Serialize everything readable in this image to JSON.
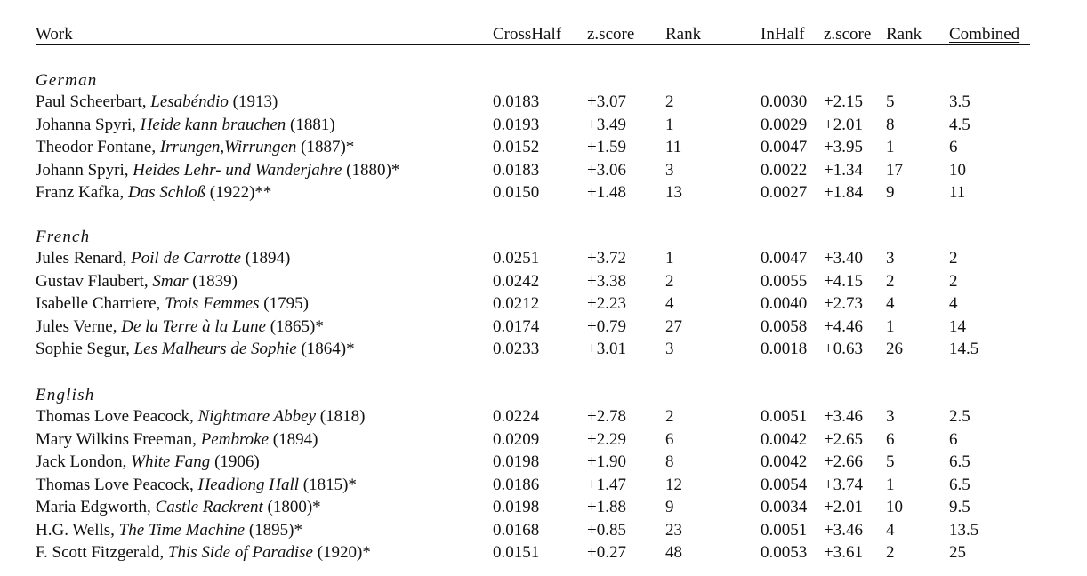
{
  "header": {
    "work": "Work",
    "crosshalf": "CrossHalf",
    "zscore1": "z.score",
    "rank1": "Rank",
    "inhalf": "InHalf",
    "zscore2": "z.score",
    "rank2": "Rank",
    "combined": "Combined"
  },
  "sections": [
    {
      "title": "German",
      "rows": [
        {
          "author": "Paul Scheerbart, ",
          "title": "Lesabéndio",
          "rest": " (1913)",
          "crosshalf": "0.0183",
          "z1": "+3.07",
          "rank1": "2",
          "inhalf": "0.0030",
          "z2": "+2.15",
          "rank2": "5",
          "combined": "3.5"
        },
        {
          "author": "Johanna Spyri, ",
          "title": "Heide kann brauchen",
          "rest": " (1881)",
          "crosshalf": "0.0193",
          "z1": "+3.49",
          "rank1": "1",
          "inhalf": "0.0029",
          "z2": "+2.01",
          "rank2": "8",
          "combined": "4.5"
        },
        {
          "author": "Theodor Fontane, ",
          "title": "Irrungen,Wirrungen",
          "rest": " (1887)*",
          "crosshalf": "0.0152",
          "z1": "+1.59",
          "rank1": "11",
          "inhalf": "0.0047",
          "z2": "+3.95",
          "rank2": "1",
          "combined": "6"
        },
        {
          "author": "Johann Spyri, ",
          "title": "Heides Lehr- und Wanderjahre",
          "rest": " (1880)*",
          "crosshalf": "0.0183",
          "z1": "+3.06",
          "rank1": "3",
          "inhalf": "0.0022",
          "z2": "+1.34",
          "rank2": "17",
          "combined": "10"
        },
        {
          "author": "Franz Kafka, ",
          "title": "Das Schloß",
          "rest": " (1922)**",
          "crosshalf": "0.0150",
          "z1": "+1.48",
          "rank1": "13",
          "inhalf": "0.0027",
          "z2": "+1.84",
          "rank2": "9",
          "combined": "11"
        }
      ]
    },
    {
      "title": "French",
      "rows": [
        {
          "author": "Jules Renard, ",
          "title": "Poil de Carrotte",
          "rest": " (1894)",
          "crosshalf": "0.0251",
          "z1": "+3.72",
          "rank1": "1",
          "inhalf": "0.0047",
          "z2": "+3.40",
          "rank2": "3",
          "combined": "2"
        },
        {
          "author": "Gustav Flaubert, ",
          "title": "Smar",
          "rest": " (1839)",
          "crosshalf": "0.0242",
          "z1": "+3.38",
          "rank1": "2",
          "inhalf": "0.0055",
          "z2": "+4.15",
          "rank2": "2",
          "combined": "2"
        },
        {
          "author": "Isabelle Charriere, ",
          "title": "Trois Femmes",
          "rest": " (1795)",
          "crosshalf": "0.0212",
          "z1": "+2.23",
          "rank1": "4",
          "inhalf": "0.0040",
          "z2": "+2.73",
          "rank2": "4",
          "combined": "4"
        },
        {
          "author": "Jules Verne, ",
          "title": "De la Terre à la Lune",
          "rest": " (1865)*",
          "crosshalf": "0.0174",
          "z1": "+0.79",
          "rank1": "27",
          "inhalf": "0.0058",
          "z2": "+4.46",
          "rank2": "1",
          "combined": "14"
        },
        {
          "author": "Sophie Segur, ",
          "title": "Les Malheurs de Sophie",
          "rest": " (1864)*",
          "crosshalf": "0.0233",
          "z1": "+3.01",
          "rank1": "3",
          "inhalf": "0.0018",
          "z2": "+0.63",
          "rank2": "26",
          "combined": "14.5"
        }
      ]
    },
    {
      "title": "English",
      "rows": [
        {
          "author": "Thomas Love Peacock, ",
          "title": "Nightmare Abbey",
          "rest": " (1818)",
          "crosshalf": "0.0224",
          "z1": "+2.78",
          "rank1": "2",
          "inhalf": "0.0051",
          "z2": "+3.46",
          "rank2": "3",
          "combined": "2.5"
        },
        {
          "author": "Mary Wilkins Freeman, ",
          "title": "Pembroke",
          "rest": " (1894)",
          "crosshalf": "0.0209",
          "z1": "+2.29",
          "rank1": "6",
          "inhalf": "0.0042",
          "z2": "+2.65",
          "rank2": "6",
          "combined": "6"
        },
        {
          "author": "Jack London, ",
          "title": "White Fang",
          "rest": " (1906)",
          "crosshalf": "0.0198",
          "z1": "+1.90",
          "rank1": "8",
          "inhalf": "0.0042",
          "z2": "+2.66",
          "rank2": "5",
          "combined": "6.5"
        },
        {
          "author": "Thomas Love Peacock, ",
          "title": "Headlong Hall",
          "rest": " (1815)*",
          "crosshalf": "0.0186",
          "z1": "+1.47",
          "rank1": "12",
          "inhalf": "0.0054",
          "z2": "+3.74",
          "rank2": "1",
          "combined": "6.5"
        },
        {
          "author": "Maria Edgworth, ",
          "title": "Castle Rackrent",
          "rest": " (1800)*",
          "crosshalf": "0.0198",
          "z1": "+1.88",
          "rank1": "9",
          "inhalf": "0.0034",
          "z2": "+2.01",
          "rank2": "10",
          "combined": "9.5"
        },
        {
          "author": "H.G. Wells, ",
          "title": "The Time Machine",
          "rest": " (1895)*",
          "crosshalf": "0.0168",
          "z1": "+0.85",
          "rank1": "23",
          "inhalf": "0.0051",
          "z2": "+3.46",
          "rank2": "4",
          "combined": "13.5"
        },
        {
          "author": "F. Scott Fitzgerald, ",
          "title": "This Side of Paradise",
          "rest": " (1920)*",
          "crosshalf": "0.0151",
          "z1": "+0.27",
          "rank1": "48",
          "inhalf": "0.0053",
          "z2": "+3.61",
          "rank2": "2",
          "combined": "25"
        }
      ]
    }
  ]
}
